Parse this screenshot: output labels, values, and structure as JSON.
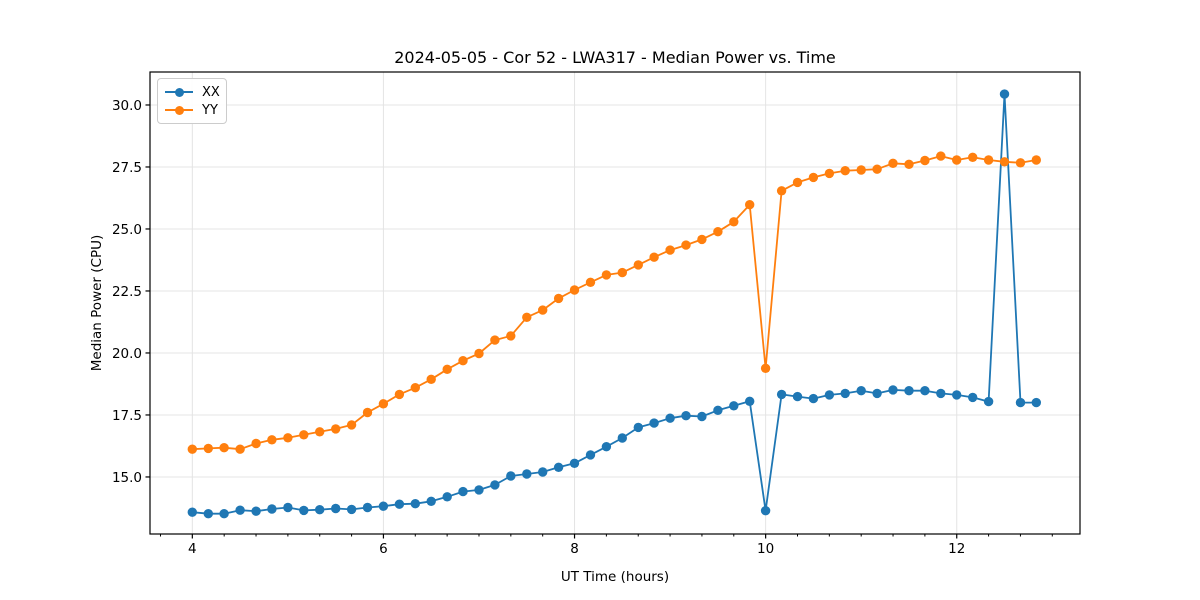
{
  "figure_title": "2024-05-05 - Cor 52 - LWA317 - Median Power vs. Time",
  "chart_data": {
    "type": "line",
    "title": "2024-05-05 - Cor 52 - LWA317 - Median Power vs. Time",
    "xlabel": "UT Time (hours)",
    "ylabel": "Median Power (CPU)",
    "xlim": [
      3.557,
      13.29
    ],
    "ylim": [
      12.7,
      31.33
    ],
    "xtick_values": [
      4,
      6,
      8,
      10,
      12
    ],
    "xtick_labels": [
      "4",
      "6",
      "8",
      "10",
      "12"
    ],
    "minor_xtick_step_hours": 0.3333,
    "ytick_values": [
      15.0,
      17.5,
      20.0,
      22.5,
      25.0,
      27.5,
      30.0
    ],
    "ytick_labels": [
      "15.0",
      "17.5",
      "20.0",
      "22.5",
      "25.0",
      "27.5",
      "30.0"
    ],
    "grid": true,
    "legend_position": "upper left",
    "x": [
      4.0,
      4.167,
      4.333,
      4.5,
      4.667,
      4.833,
      5.0,
      5.167,
      5.333,
      5.5,
      5.667,
      5.833,
      6.0,
      6.167,
      6.333,
      6.5,
      6.667,
      6.833,
      7.0,
      7.167,
      7.333,
      7.5,
      7.667,
      7.833,
      8.0,
      8.167,
      8.333,
      8.5,
      8.667,
      8.833,
      9.0,
      9.167,
      9.333,
      9.5,
      9.667,
      9.833,
      10.0,
      10.167,
      10.333,
      10.5,
      10.667,
      10.833,
      11.0,
      11.167,
      11.333,
      11.5,
      11.667,
      11.833,
      12.0,
      12.167,
      12.333,
      12.5,
      12.667,
      12.833
    ],
    "series": [
      {
        "name": "XX",
        "color": "#1f77b4",
        "values": [
          13.58,
          13.52,
          13.52,
          13.66,
          13.62,
          13.71,
          13.77,
          13.65,
          13.68,
          13.73,
          13.69,
          13.77,
          13.82,
          13.9,
          13.92,
          14.02,
          14.2,
          14.41,
          14.48,
          14.68,
          15.04,
          15.12,
          15.2,
          15.39,
          15.55,
          15.89,
          16.22,
          16.57,
          17.0,
          17.17,
          17.37,
          17.47,
          17.44,
          17.69,
          17.87,
          18.05,
          13.64,
          18.33,
          18.24,
          18.16,
          18.31,
          18.37,
          18.48,
          18.37,
          18.51,
          18.48,
          18.48,
          18.37,
          18.31,
          18.21,
          18.04,
          30.44,
          18.0,
          18.0
        ]
      },
      {
        "name": "YY",
        "color": "#ff7f0e",
        "values": [
          16.12,
          16.15,
          16.18,
          16.12,
          16.35,
          16.5,
          16.58,
          16.7,
          16.82,
          16.94,
          17.1,
          17.6,
          17.95,
          18.33,
          18.6,
          18.94,
          19.34,
          19.69,
          19.98,
          20.52,
          20.69,
          21.44,
          21.73,
          22.2,
          22.54,
          22.85,
          23.15,
          23.24,
          23.55,
          23.86,
          24.15,
          24.35,
          24.58,
          24.89,
          25.29,
          25.98,
          19.38,
          26.54,
          26.88,
          27.08,
          27.24,
          27.35,
          27.38,
          27.41,
          27.65,
          27.61,
          27.76,
          27.94,
          27.78,
          27.89,
          27.78,
          27.71,
          27.67,
          27.78
        ]
      }
    ],
    "style": {
      "grid_color": "#e4e4e4",
      "spine_color": "#000000",
      "background": "#ffffff",
      "marker_radius": 4.7,
      "line_width": 1.8
    }
  }
}
